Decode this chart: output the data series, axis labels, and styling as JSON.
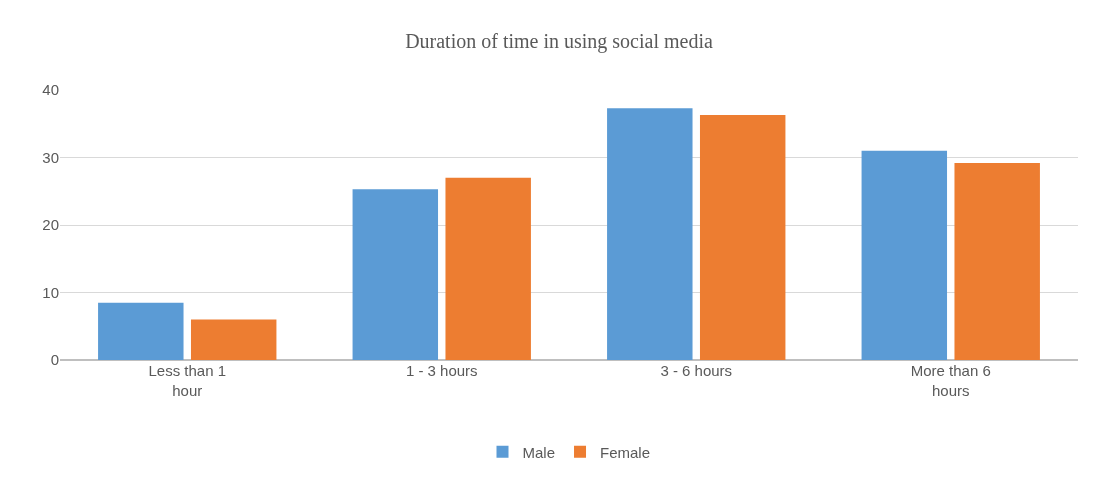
{
  "chart_data": {
    "type": "bar",
    "title": "Duration of time in using social media",
    "categories": [
      "Less than 1 hour",
      "1 - 3 hours",
      "3 - 6 hours",
      "More than 6 hours"
    ],
    "series": [
      {
        "name": "Male",
        "color": "#5b9bd5",
        "values": [
          8.5,
          25.3,
          37.3,
          31
        ]
      },
      {
        "name": "Female",
        "color": "#ed7d31",
        "values": [
          6,
          27,
          36.3,
          29.2
        ]
      }
    ],
    "ylim": [
      0,
      40
    ],
    "yticks": [
      0,
      10,
      20,
      30,
      40
    ],
    "grid": "y",
    "legend": "bottom"
  }
}
